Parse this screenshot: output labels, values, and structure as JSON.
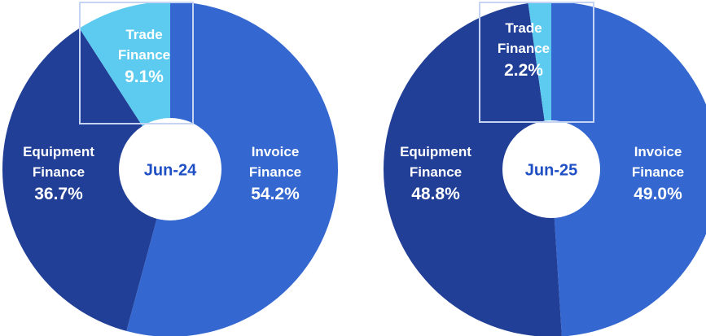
{
  "chart_data": [
    {
      "type": "pie",
      "title": "Jun-24",
      "categories": [
        "Invoice Finance",
        "Equipment Finance",
        "Trade Finance"
      ],
      "values": [
        54.2,
        36.7,
        9.1
      ],
      "value_labels": [
        "54.2%",
        "36.7%",
        "9.1%"
      ],
      "colors": [
        "#3468d0",
        "#213f96",
        "#5ccbef"
      ]
    },
    {
      "type": "pie",
      "title": "Jun-25",
      "categories": [
        "Invoice Finance",
        "Equipment Finance",
        "Trade Finance"
      ],
      "values": [
        49.0,
        48.8,
        2.2
      ],
      "value_labels": [
        "49.0%",
        "48.8%",
        "2.2%"
      ],
      "colors": [
        "#3468d0",
        "#213f96",
        "#5ccbef"
      ]
    }
  ]
}
